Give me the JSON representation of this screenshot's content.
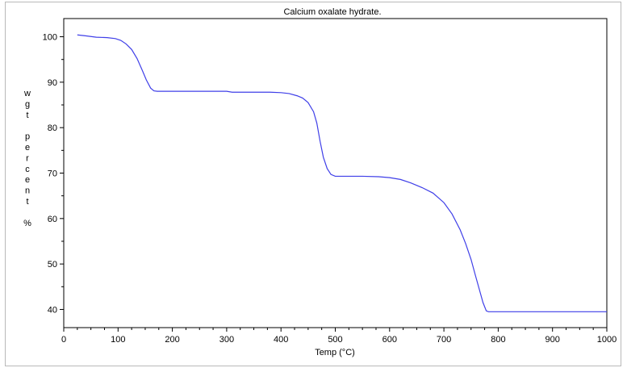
{
  "chart_data": {
    "type": "line",
    "title": "Calcium oxalate hydrate.",
    "xlabel": "Temp (°C)",
    "ylabel_chars": [
      "w",
      "g",
      "t",
      "",
      "p",
      "e",
      "r",
      "c",
      "e",
      "n",
      "t",
      "",
      "%"
    ],
    "xlim": [
      0,
      1000
    ],
    "ylim": [
      36,
      104
    ],
    "x_ticks": [
      0,
      100,
      200,
      300,
      400,
      500,
      600,
      700,
      800,
      900,
      1000
    ],
    "y_ticks": [
      40,
      50,
      60,
      70,
      80,
      90,
      100
    ],
    "grid": false,
    "series": [
      {
        "color": "#3f3fe8",
        "x": [
          25,
          40,
          60,
          80,
          95,
          105,
          115,
          125,
          135,
          145,
          152,
          160,
          166,
          172,
          200,
          250,
          300,
          310,
          350,
          380,
          400,
          415,
          430,
          440,
          450,
          460,
          466,
          472,
          478,
          485,
          492,
          500,
          520,
          550,
          580,
          600,
          620,
          640,
          660,
          680,
          700,
          715,
          730,
          740,
          750,
          758,
          765,
          772,
          778,
          782,
          790,
          850,
          900,
          950,
          1000
        ],
        "y": [
          100.4,
          100.2,
          99.9,
          99.8,
          99.6,
          99.2,
          98.4,
          97.2,
          95.2,
          92.5,
          90.5,
          88.7,
          88.1,
          88.0,
          88.0,
          88.0,
          88.0,
          87.8,
          87.8,
          87.8,
          87.7,
          87.5,
          87.0,
          86.5,
          85.5,
          83.5,
          81.0,
          77.0,
          73.5,
          71.0,
          69.7,
          69.3,
          69.3,
          69.3,
          69.2,
          69.0,
          68.6,
          67.8,
          66.8,
          65.6,
          63.5,
          61.0,
          57.5,
          54.5,
          51.0,
          47.5,
          44.5,
          41.5,
          39.7,
          39.5,
          39.5,
          39.5,
          39.5,
          39.5,
          39.5
        ]
      }
    ]
  }
}
